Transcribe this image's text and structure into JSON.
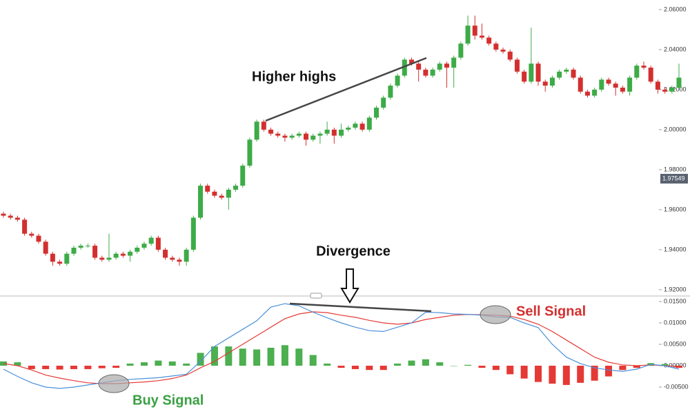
{
  "chart_data": [
    {
      "type": "candlestick",
      "annotations": [
        "Higher highs",
        "Divergence"
      ],
      "up_color": "#3dab47",
      "down_color": "#d32f2f",
      "open": [
        1.958,
        1.957,
        1.956,
        1.955,
        1.948,
        1.947,
        1.944,
        1.938,
        1.934,
        1.933,
        1.938,
        1.941,
        1.942,
        1.942,
        1.936,
        1.935,
        1.936,
        1.938,
        1.937,
        1.939,
        1.941,
        1.943,
        1.946,
        1.94,
        1.936,
        1.935,
        1.934,
        1.94,
        1.956,
        1.972,
        1.969,
        1.967,
        1.966,
        1.97,
        1.972,
        1.982,
        1.995,
        2.004,
        2.0,
        1.998,
        1.997,
        1.996,
        1.997,
        1.998,
        1.995,
        1.997,
        1.998,
        2.0,
        1.997,
        2.0,
        2.001,
        2.003,
        2.0,
        2.006,
        2.011,
        2.016,
        2.022,
        2.027,
        2.035,
        2.033,
        2.03,
        2.027,
        2.03,
        2.033,
        2.031,
        2.036,
        2.043,
        2.052,
        2.047,
        2.046,
        2.043,
        2.04,
        2.039,
        2.035,
        2.029,
        2.024,
        2.033,
        2.024,
        2.022,
        2.026,
        2.029,
        2.03,
        2.026,
        2.019,
        2.017,
        2.02,
        2.025,
        2.023,
        2.021,
        2.019,
        2.026,
        2.032,
        2.031,
        2.024,
        2.02,
        2.019,
        2.021
      ],
      "high": [
        1.959,
        1.958,
        1.957,
        1.956,
        1.949,
        1.948,
        1.945,
        1.939,
        1.935,
        1.939,
        1.942,
        1.943,
        1.943,
        1.943,
        1.937,
        1.948,
        1.939,
        1.939,
        1.94,
        1.942,
        1.944,
        1.947,
        1.947,
        1.941,
        1.937,
        1.936,
        1.941,
        1.957,
        1.973,
        1.973,
        1.97,
        1.968,
        1.971,
        1.973,
        1.983,
        1.996,
        2.005,
        2.005,
        2.001,
        1.999,
        1.998,
        1.998,
        1.999,
        1.999,
        1.998,
        1.999,
        2.004,
        2.001,
        2.003,
        2.002,
        2.004,
        2.004,
        2.007,
        2.012,
        2.017,
        2.023,
        2.028,
        2.036,
        2.036,
        2.034,
        2.031,
        2.031,
        2.034,
        2.034,
        2.037,
        2.044,
        2.057,
        2.057,
        2.053,
        2.047,
        2.044,
        2.041,
        2.04,
        2.036,
        2.03,
        2.051,
        2.034,
        2.025,
        2.027,
        2.03,
        2.031,
        2.031,
        2.027,
        2.02,
        2.021,
        2.026,
        2.026,
        2.024,
        2.022,
        2.027,
        2.033,
        2.034,
        2.032,
        2.025,
        2.021,
        2.022,
        2.033
      ],
      "low": [
        1.956,
        1.955,
        1.954,
        1.947,
        1.946,
        1.943,
        1.937,
        1.932,
        1.932,
        1.932,
        1.937,
        1.94,
        1.941,
        1.935,
        1.934,
        1.934,
        1.935,
        1.936,
        1.934,
        1.938,
        1.94,
        1.942,
        1.939,
        1.935,
        1.934,
        1.932,
        1.932,
        1.939,
        1.955,
        1.968,
        1.966,
        1.965,
        1.96,
        1.969,
        1.971,
        1.981,
        1.994,
        1.999,
        1.997,
        1.996,
        1.994,
        1.995,
        1.996,
        1.992,
        1.994,
        1.993,
        1.997,
        1.993,
        1.996,
        1.999,
        2.0,
        1.999,
        1.999,
        2.005,
        2.01,
        2.015,
        2.021,
        2.026,
        2.032,
        2.024,
        2.026,
        2.026,
        2.029,
        2.021,
        2.021,
        2.035,
        2.042,
        2.045,
        2.045,
        2.042,
        2.039,
        2.038,
        2.034,
        2.028,
        2.023,
        2.023,
        2.022,
        2.019,
        2.021,
        2.025,
        2.028,
        2.025,
        2.018,
        2.016,
        2.016,
        2.019,
        2.022,
        2.017,
        2.018,
        2.017,
        2.025,
        2.03,
        2.023,
        2.018,
        2.018,
        2.018,
        2.02
      ],
      "close": [
        1.957,
        1.956,
        1.955,
        1.948,
        1.947,
        1.944,
        1.938,
        1.934,
        1.933,
        1.938,
        1.941,
        1.942,
        1.942,
        1.936,
        1.935,
        1.936,
        1.938,
        1.937,
        1.939,
        1.941,
        1.943,
        1.946,
        1.94,
        1.936,
        1.935,
        1.934,
        1.94,
        1.956,
        1.972,
        1.969,
        1.967,
        1.966,
        1.97,
        1.972,
        1.982,
        1.995,
        2.004,
        2.0,
        1.998,
        1.997,
        1.996,
        1.997,
        1.998,
        1.995,
        1.997,
        1.998,
        2.0,
        1.997,
        2.0,
        2.001,
        2.003,
        2.0,
        2.006,
        2.011,
        2.016,
        2.022,
        2.027,
        2.035,
        2.033,
        2.03,
        2.027,
        2.03,
        2.033,
        2.031,
        2.036,
        2.043,
        2.052,
        2.047,
        2.046,
        2.043,
        2.04,
        2.039,
        2.035,
        2.029,
        2.024,
        2.033,
        2.024,
        2.022,
        2.026,
        2.029,
        2.03,
        2.026,
        2.019,
        2.017,
        2.02,
        2.025,
        2.023,
        2.021,
        2.019,
        2.026,
        2.032,
        2.031,
        2.024,
        2.02,
        2.019,
        2.021,
        2.026
      ],
      "ylim": [
        1.9172,
        2.0648
      ],
      "yticks": [
        {
          "value": 1.92,
          "label": "1.92000"
        },
        {
          "value": 1.94,
          "label": "1.94000"
        },
        {
          "value": 1.96,
          "label": "1.96000"
        },
        {
          "value": 1.98,
          "label": "1.98000"
        },
        {
          "value": 2.0,
          "label": "2.00000"
        },
        {
          "value": 2.02,
          "label": "2.02000"
        },
        {
          "value": 2.04,
          "label": "2.04000"
        },
        {
          "value": 2.06,
          "label": "2.06000"
        }
      ],
      "last_price": {
        "value": 1.97549,
        "label": "1.97549"
      }
    },
    {
      "type": "macd",
      "annotations": [
        "Sell Signal",
        "Buy Signal"
      ],
      "macd": {
        "color": "#4a90d9",
        "values": [
          -0.0008,
          -0.0025,
          -0.004,
          -0.005,
          -0.0053,
          -0.005,
          -0.0045,
          -0.004,
          -0.0035,
          -0.0032,
          -0.003,
          -0.0028,
          -0.0024,
          -0.002,
          0.001,
          0.0045,
          0.0065,
          0.0085,
          0.0105,
          0.0137,
          0.0145,
          0.014,
          0.0125,
          0.0112,
          0.01,
          0.009,
          0.0082,
          0.008,
          0.009,
          0.01,
          0.0125,
          0.0124,
          0.0121,
          0.012,
          0.0118,
          0.0114,
          0.0113,
          0.01,
          0.0089,
          0.005,
          0.002,
          0.0005,
          -0.0005,
          -0.001,
          -0.0013,
          -0.0008,
          0.0003,
          0.0,
          -0.0008
        ]
      },
      "signal": {
        "color": "#e53935",
        "values": [
          0.0005,
          0.0,
          -0.001,
          -0.0022,
          -0.0029,
          -0.0035,
          -0.004,
          -0.0042,
          -0.0042,
          -0.004,
          -0.0038,
          -0.0035,
          -0.003,
          -0.0022,
          -0.0005,
          0.001,
          0.003,
          0.005,
          0.007,
          0.009,
          0.011,
          0.0121,
          0.0126,
          0.0124,
          0.0118,
          0.0113,
          0.0106,
          0.01,
          0.0097,
          0.01,
          0.0108,
          0.0113,
          0.0118,
          0.012,
          0.0119,
          0.0118,
          0.0116,
          0.0108,
          0.0097,
          0.008,
          0.006,
          0.004,
          0.002,
          0.0008,
          0.0002,
          0.0,
          0.0002,
          0.0,
          -0.0002
        ]
      },
      "histogram": {
        "up_color": "#4caf50",
        "down_color": "#e53935",
        "values": [
          0.001,
          0.0008,
          -0.0008,
          -0.0008,
          -0.0009,
          -0.0008,
          -0.0008,
          -0.0006,
          -0.0005,
          0.0005,
          0.0008,
          0.0012,
          0.001,
          0.0005,
          0.003,
          0.0045,
          0.0045,
          0.004,
          0.0038,
          0.0042,
          0.0048,
          0.004,
          0.0025,
          0.0005,
          -0.0005,
          -0.0008,
          -0.001,
          -0.001,
          0.0005,
          0.0012,
          0.0015,
          0.0008,
          0.0,
          0.0002,
          -0.0005,
          -0.001,
          -0.002,
          -0.003,
          -0.0038,
          -0.0042,
          -0.0045,
          -0.004,
          -0.0035,
          -0.0025,
          -0.001,
          -0.0005,
          0.0006,
          0.0004,
          -0.0005
        ]
      },
      "ylim": [
        -0.01129,
        0.01613
      ],
      "yticks": [
        {
          "value": 0.015,
          "label": "0.01500"
        },
        {
          "value": 0.01,
          "label": "0.01000"
        },
        {
          "value": 0.005,
          "label": "0.00500"
        },
        {
          "value": 0,
          "label": "0.00000"
        },
        {
          "value": -0.005,
          "label": "-0.00500"
        }
      ]
    }
  ]
}
